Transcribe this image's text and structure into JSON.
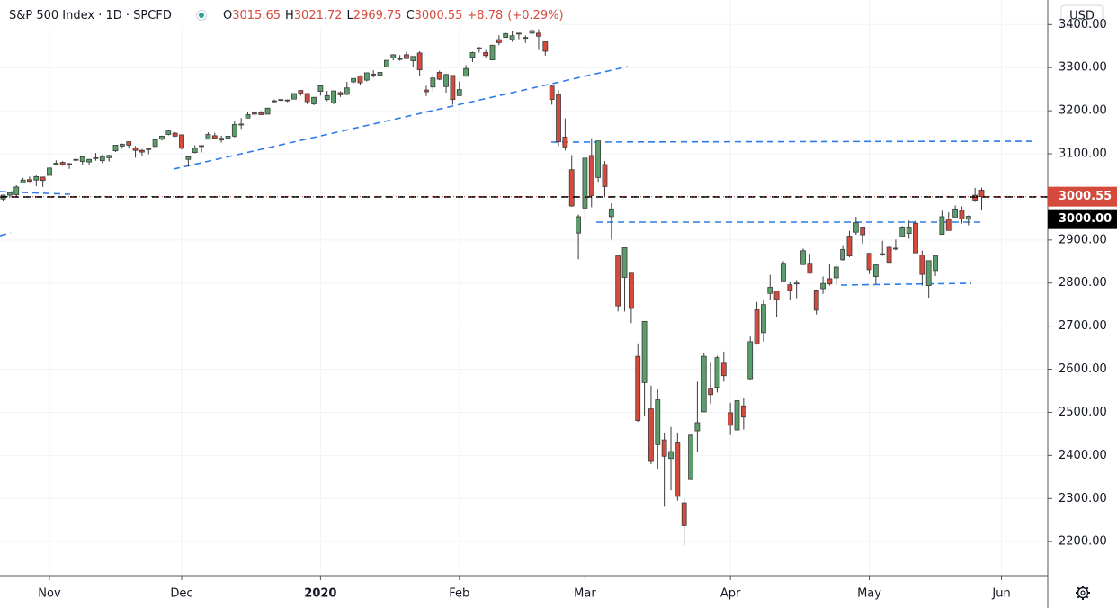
{
  "chart_data": {
    "type": "candlestick",
    "title": "S&P 500 Index · 1D · SPCFD",
    "ohlc_keys": [
      "O",
      "H",
      "L",
      "C"
    ],
    "change": "+8.78",
    "change_pct": "(+0.29%)",
    "currency": "USD",
    "up_color": "#5b9e6c",
    "down_color": "#d44a3d",
    "grid": true,
    "xlim": [
      -0.48,
      158
    ],
    "xticks": [
      {
        "value": 7,
        "label": "Nov"
      },
      {
        "value": 27,
        "label": "Dec"
      },
      {
        "value": 48,
        "label": "2020"
      },
      {
        "value": 69,
        "label": "Feb"
      },
      {
        "value": 88,
        "label": "Mar"
      },
      {
        "value": 110,
        "label": "Apr"
      },
      {
        "value": 131,
        "label": "May"
      },
      {
        "value": 151,
        "label": "Jun"
      }
    ],
    "ylim": [
      2121,
      3457
    ],
    "yticks": [
      {
        "value": 2200,
        "label": "2200.00"
      },
      {
        "value": 2300,
        "label": "2300.00"
      },
      {
        "value": 2400,
        "label": "2400.00"
      },
      {
        "value": 2500,
        "label": "2500.00"
      },
      {
        "value": 2600,
        "label": "2600.00"
      },
      {
        "value": 2700,
        "label": "2700.00"
      },
      {
        "value": 2800,
        "label": "2800.00"
      },
      {
        "value": 2900,
        "label": "2900.00"
      },
      {
        "value": 3100,
        "label": "3100.00"
      },
      {
        "value": 3200,
        "label": "3200.00"
      },
      {
        "value": 3300,
        "label": "3300.00"
      },
      {
        "value": 3400,
        "label": "3400.00"
      }
    ],
    "hline": {
      "value": 3000,
      "label": "3000.00"
    },
    "ohlc": [
      [
        2995,
        3005,
        2990,
        3004
      ],
      [
        3004,
        3012,
        2998,
        3010
      ],
      [
        3005,
        3027,
        3001,
        3023
      ],
      [
        3032,
        3044,
        3031,
        3039
      ],
      [
        3040,
        3047,
        3034,
        3036
      ],
      [
        3039,
        3050,
        3025,
        3047
      ],
      [
        3046,
        3047,
        3023,
        3038
      ],
      [
        3050,
        3067,
        3050,
        3067
      ],
      [
        3078,
        3085,
        3074,
        3078
      ],
      [
        3080,
        3083,
        3072,
        3075
      ],
      [
        3076,
        3079,
        3065,
        3077
      ],
      [
        3087,
        3098,
        3080,
        3085
      ],
      [
        3082,
        3093,
        3074,
        3093
      ],
      [
        3081,
        3088,
        3075,
        3087
      ],
      [
        3090,
        3102,
        3084,
        3091
      ],
      [
        3084,
        3098,
        3078,
        3094
      ],
      [
        3091,
        3098,
        3082,
        3096
      ],
      [
        3107,
        3120,
        3104,
        3120
      ],
      [
        3118,
        3124,
        3112,
        3122
      ],
      [
        3128,
        3128,
        3112,
        3120
      ],
      [
        3114,
        3118,
        3091,
        3108
      ],
      [
        3108,
        3111,
        3095,
        3104
      ],
      [
        3112,
        3112,
        3099,
        3110
      ],
      [
        3117,
        3134,
        3117,
        3133
      ],
      [
        3134,
        3142,
        3131,
        3141
      ],
      [
        3145,
        3154,
        3143,
        3153
      ],
      [
        3148,
        3150,
        3139,
        3141
      ],
      [
        3144,
        3145,
        3110,
        3113
      ],
      [
        3087,
        3094,
        3070,
        3093
      ],
      [
        3103,
        3120,
        3101,
        3113
      ],
      [
        3119,
        3120,
        3103,
        3117
      ],
      [
        3134,
        3150,
        3134,
        3145
      ],
      [
        3142,
        3149,
        3135,
        3136
      ],
      [
        3136,
        3142,
        3126,
        3132
      ],
      [
        3136,
        3143,
        3133,
        3141
      ],
      [
        3141,
        3177,
        3138,
        3168
      ],
      [
        3167,
        3183,
        3158,
        3169
      ],
      [
        3183,
        3197,
        3183,
        3191
      ],
      [
        3195,
        3198,
        3191,
        3192
      ],
      [
        3195,
        3199,
        3190,
        3191
      ],
      [
        3192,
        3206,
        3192,
        3206
      ],
      [
        3223,
        3226,
        3217,
        3221
      ],
      [
        3226,
        3227,
        3222,
        3224
      ],
      [
        3225,
        3226,
        3220,
        3223
      ],
      [
        3227,
        3240,
        3227,
        3240
      ],
      [
        3247,
        3248,
        3235,
        3240
      ],
      [
        3240,
        3241,
        3215,
        3221
      ],
      [
        3216,
        3232,
        3213,
        3231
      ],
      [
        3245,
        3258,
        3235,
        3258
      ],
      [
        3226,
        3246,
        3222,
        3235
      ],
      [
        3218,
        3247,
        3215,
        3246
      ],
      [
        3242,
        3245,
        3232,
        3237
      ],
      [
        3238,
        3267,
        3236,
        3253
      ],
      [
        3267,
        3275,
        3264,
        3275
      ],
      [
        3281,
        3282,
        3260,
        3265
      ],
      [
        3271,
        3288,
        3268,
        3288
      ],
      [
        3285,
        3294,
        3277,
        3283
      ],
      [
        3282,
        3298,
        3281,
        3289
      ],
      [
        3302,
        3317,
        3302,
        3317
      ],
      [
        3323,
        3330,
        3317,
        3330
      ],
      [
        3321,
        3329,
        3316,
        3321
      ],
      [
        3330,
        3337,
        3320,
        3321
      ],
      [
        3316,
        3326,
        3302,
        3326
      ],
      [
        3334,
        3338,
        3280,
        3295
      ],
      [
        3248,
        3258,
        3234,
        3244
      ],
      [
        3255,
        3285,
        3245,
        3276
      ],
      [
        3289,
        3293,
        3271,
        3273
      ],
      [
        3256,
        3286,
        3242,
        3284
      ],
      [
        3282,
        3282,
        3214,
        3226
      ],
      [
        3235,
        3268,
        3235,
        3249
      ],
      [
        3280,
        3306,
        3280,
        3298
      ],
      [
        3324,
        3337,
        3313,
        3335
      ],
      [
        3344,
        3348,
        3335,
        3346
      ],
      [
        3335,
        3341,
        3322,
        3328
      ],
      [
        3318,
        3352,
        3317,
        3352
      ],
      [
        3365,
        3375,
        3352,
        3358
      ],
      [
        3370,
        3381,
        3369,
        3379
      ],
      [
        3365,
        3385,
        3360,
        3374
      ],
      [
        3378,
        3381,
        3366,
        3380
      ],
      [
        3370,
        3375,
        3357,
        3370
      ],
      [
        3380,
        3393,
        3378,
        3386
      ],
      [
        3380,
        3389,
        3341,
        3373
      ],
      [
        3360,
        3360,
        3328,
        3338
      ],
      [
        3257,
        3259,
        3214,
        3226
      ],
      [
        3238,
        3247,
        3118,
        3128
      ],
      [
        3139,
        3182,
        3108,
        3116
      ],
      [
        3063,
        3097,
        2977,
        2979
      ],
      [
        2916,
        2959,
        2855,
        2954
      ],
      [
        2974,
        3091,
        2946,
        3090
      ],
      [
        3096,
        3136,
        2976,
        3003
      ],
      [
        3045,
        3130,
        3035,
        3130
      ],
      [
        3075,
        3083,
        2999,
        3024
      ],
      [
        2954,
        2985,
        2901,
        2972
      ],
      [
        2863,
        2863,
        2734,
        2747
      ],
      [
        2813,
        2882,
        2734,
        2882
      ],
      [
        2825,
        2825,
        2707,
        2741
      ],
      [
        2630,
        2660,
        2478,
        2481
      ],
      [
        2569,
        2711,
        2492,
        2711
      ],
      [
        2508,
        2562,
        2380,
        2386
      ],
      [
        2425,
        2553,
        2367,
        2529
      ],
      [
        2436,
        2453,
        2281,
        2398
      ],
      [
        2393,
        2466,
        2319,
        2409
      ],
      [
        2431,
        2453,
        2295,
        2305
      ],
      [
        2290,
        2300,
        2191,
        2237
      ],
      [
        2344,
        2449,
        2344,
        2447
      ],
      [
        2457,
        2571,
        2407,
        2476
      ],
      [
        2501,
        2637,
        2500,
        2630
      ],
      [
        2556,
        2615,
        2520,
        2541
      ],
      [
        2558,
        2631,
        2546,
        2627
      ],
      [
        2614,
        2641,
        2571,
        2585
      ],
      [
        2499,
        2522,
        2447,
        2470
      ],
      [
        2459,
        2539,
        2455,
        2527
      ],
      [
        2515,
        2533,
        2460,
        2489
      ],
      [
        2578,
        2676,
        2574,
        2664
      ],
      [
        2738,
        2756,
        2657,
        2659
      ],
      [
        2685,
        2760,
        2664,
        2750
      ],
      [
        2776,
        2819,
        2762,
        2790
      ],
      [
        2782,
        2782,
        2721,
        2762
      ],
      [
        2805,
        2851,
        2805,
        2846
      ],
      [
        2796,
        2802,
        2761,
        2783
      ],
      [
        2799,
        2807,
        2765,
        2800
      ],
      [
        2843,
        2880,
        2842,
        2875
      ],
      [
        2846,
        2868,
        2821,
        2823
      ],
      [
        2784,
        2785,
        2727,
        2737
      ],
      [
        2787,
        2815,
        2775,
        2799
      ],
      [
        2810,
        2845,
        2794,
        2798
      ],
      [
        2812,
        2842,
        2795,
        2837
      ],
      [
        2854,
        2888,
        2852,
        2878
      ],
      [
        2909,
        2921,
        2860,
        2863
      ],
      [
        2918,
        2954,
        2912,
        2940
      ],
      [
        2930,
        2930,
        2892,
        2912
      ],
      [
        2869,
        2869,
        2821,
        2831
      ],
      [
        2815,
        2844,
        2797,
        2842
      ],
      [
        2868,
        2898,
        2863,
        2868
      ],
      [
        2883,
        2891,
        2844,
        2848
      ],
      [
        2879,
        2901,
        2876,
        2881
      ],
      [
        2908,
        2932,
        2906,
        2930
      ],
      [
        2915,
        2945,
        2903,
        2930
      ],
      [
        2939,
        2945,
        2869,
        2870
      ],
      [
        2865,
        2875,
        2794,
        2820
      ],
      [
        2794,
        2852,
        2766,
        2852
      ],
      [
        2829,
        2865,
        2816,
        2864
      ],
      [
        2913,
        2968,
        2913,
        2954
      ],
      [
        2948,
        2964,
        2922,
        2922
      ],
      [
        2953,
        2980,
        2953,
        2972
      ],
      [
        2969,
        2978,
        2938,
        2949
      ],
      [
        2948,
        2957,
        2934,
        2955
      ],
      [
        3004,
        3021,
        2988,
        2992
      ],
      [
        3015.65,
        3021.72,
        2969.75,
        3000.55
      ]
    ]
  }
}
